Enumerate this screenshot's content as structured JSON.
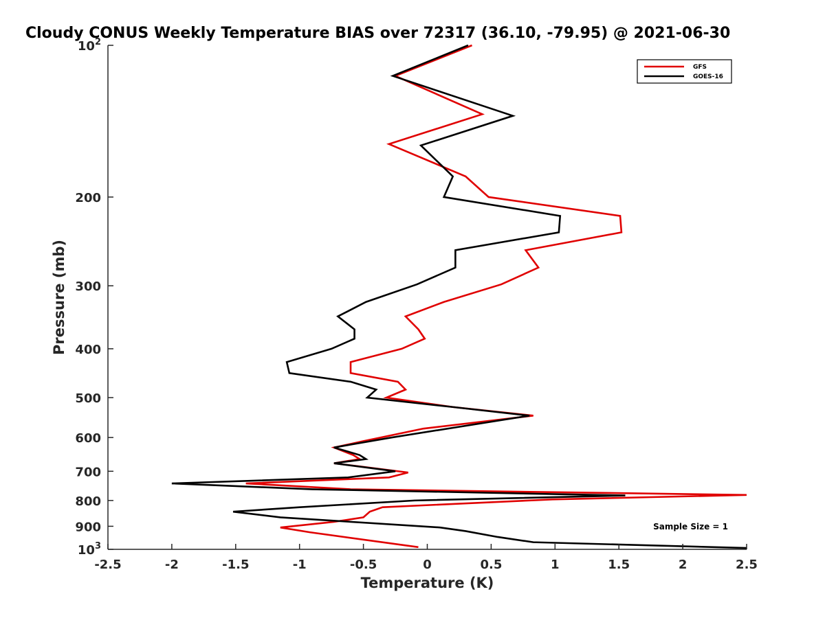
{
  "chart_data": {
    "type": "line",
    "title": "Cloudy CONUS Weekly Temperature BIAS over 72317 (36.10, -79.95) @ 2021-06-30",
    "xlabel": "Temperature (K)",
    "ylabel": "Pressure (mb)",
    "xlim": [
      -2.5,
      2.5
    ],
    "ylim": [
      1000,
      100
    ],
    "yscale": "log",
    "x_ticks": [
      -2.5,
      -2,
      -1.5,
      -1,
      -0.5,
      0,
      0.5,
      1,
      1.5,
      2,
      2.5
    ],
    "x_tick_labels": [
      "-2.5",
      "-2",
      "-1.5",
      "-1",
      "-0.5",
      "0",
      "0.5",
      "1",
      "1.5",
      "2",
      "2.5"
    ],
    "y_ticks": [
      100,
      200,
      300,
      400,
      500,
      600,
      700,
      800,
      900,
      1000
    ],
    "y_tick_labels": [
      {
        "base": "10",
        "exp": "2"
      },
      {
        "base": "200",
        "exp": ""
      },
      {
        "base": "300",
        "exp": ""
      },
      {
        "base": "400",
        "exp": ""
      },
      {
        "base": "500",
        "exp": ""
      },
      {
        "base": "600",
        "exp": ""
      },
      {
        "base": "700",
        "exp": ""
      },
      {
        "base": "800",
        "exp": ""
      },
      {
        "base": "900",
        "exp": ""
      },
      {
        "base": "10",
        "exp": "3"
      }
    ],
    "grid": false,
    "legend_position": "top-right",
    "annotation": "Sample Size = 1",
    "series": [
      {
        "name": "GFS",
        "color": "#e00000",
        "points": [
          [
            0.35,
            100
          ],
          [
            -0.25,
            115
          ],
          [
            0.43,
            137
          ],
          [
            -0.3,
            157
          ],
          [
            0.3,
            182
          ],
          [
            0.48,
            200
          ],
          [
            1.51,
            218
          ],
          [
            1.52,
            235
          ],
          [
            0.77,
            255
          ],
          [
            0.87,
            276
          ],
          [
            0.58,
            298
          ],
          [
            0.13,
            323
          ],
          [
            -0.17,
            345
          ],
          [
            -0.07,
            366
          ],
          [
            -0.02,
            382
          ],
          [
            -0.2,
            400
          ],
          [
            -0.6,
            425
          ],
          [
            -0.6,
            447
          ],
          [
            -0.23,
            465
          ],
          [
            -0.17,
            482
          ],
          [
            -0.32,
            500
          ],
          [
            0.2,
            522
          ],
          [
            0.83,
            543
          ],
          [
            -0.03,
            576
          ],
          [
            -0.5,
            610
          ],
          [
            -0.73,
            628
          ],
          [
            -0.58,
            650
          ],
          [
            -0.53,
            662
          ],
          [
            -0.73,
            675
          ],
          [
            -0.5,
            686
          ],
          [
            -0.15,
            704
          ],
          [
            -0.3,
            720
          ],
          [
            -1.42,
            740
          ],
          [
            -0.6,
            760
          ],
          [
            2.5,
            780
          ],
          [
            0.98,
            796
          ],
          [
            -0.35,
            825
          ],
          [
            -0.45,
            842
          ],
          [
            -0.5,
            864
          ],
          [
            -0.73,
            882
          ],
          [
            -1.15,
            905
          ],
          [
            -0.92,
            925
          ],
          [
            -0.07,
            990
          ]
        ]
      },
      {
        "name": "GOES-16",
        "color": "#000000",
        "points": [
          [
            0.32,
            100
          ],
          [
            -0.27,
            115
          ],
          [
            0.67,
            138
          ],
          [
            -0.05,
            158
          ],
          [
            0.2,
            182
          ],
          [
            0.13,
            200
          ],
          [
            1.04,
            218
          ],
          [
            1.03,
            235
          ],
          [
            0.22,
            255
          ],
          [
            0.22,
            276
          ],
          [
            -0.08,
            298
          ],
          [
            -0.48,
            323
          ],
          [
            -0.7,
            345
          ],
          [
            -0.57,
            366
          ],
          [
            -0.57,
            382
          ],
          [
            -0.75,
            400
          ],
          [
            -1.1,
            425
          ],
          [
            -1.08,
            447
          ],
          [
            -0.6,
            465
          ],
          [
            -0.4,
            482
          ],
          [
            -0.47,
            500
          ],
          [
            0.2,
            522
          ],
          [
            0.8,
            543
          ],
          [
            -0.28,
            600
          ],
          [
            -0.73,
            628
          ],
          [
            -0.53,
            650
          ],
          [
            -0.48,
            662
          ],
          [
            -0.73,
            675
          ],
          [
            -0.25,
            700
          ],
          [
            -0.62,
            720
          ],
          [
            -2.0,
            740
          ],
          [
            -0.9,
            760
          ],
          [
            1.55,
            782
          ],
          [
            -0.1,
            800
          ],
          [
            -1.0,
            825
          ],
          [
            -1.52,
            842
          ],
          [
            -1.15,
            864
          ],
          [
            0.1,
            905
          ],
          [
            0.3,
            920
          ],
          [
            0.55,
            945
          ],
          [
            0.83,
            968
          ],
          [
            2.5,
            994
          ]
        ]
      }
    ]
  }
}
